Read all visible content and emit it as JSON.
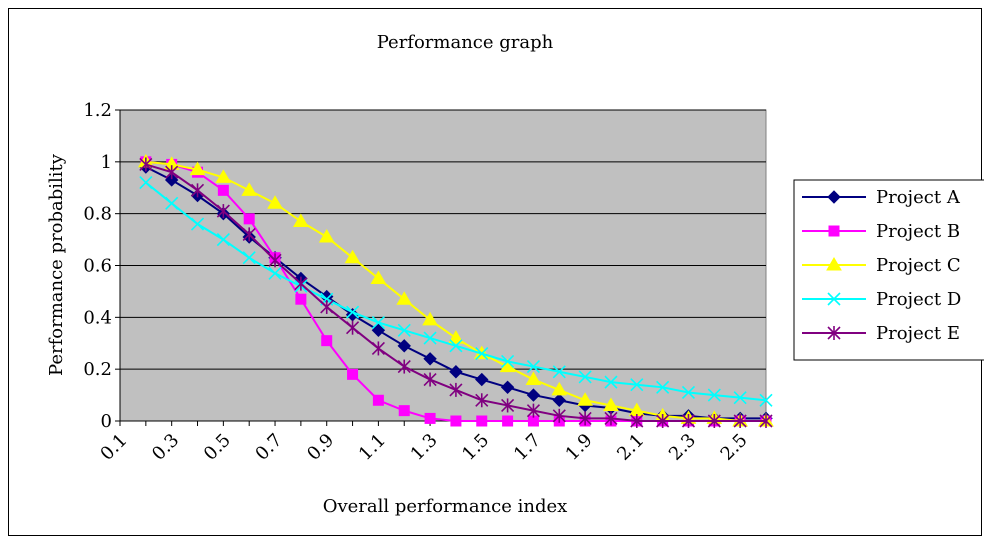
{
  "chart_data": {
    "type": "line",
    "title": "Performance graph",
    "xlabel": "Overall performance index",
    "ylabel": "Performance probability",
    "ylim": [
      0,
      1.2
    ],
    "yticks": [
      "0",
      "0.2",
      "0.4",
      "0.6",
      "0.8",
      "1",
      "1.2"
    ],
    "xtick_labels": [
      "0.1",
      "0.3",
      "0.5",
      "0.7",
      "0.9",
      "1.1",
      "1.3",
      "1.5",
      "1.7",
      "1.9",
      "2.1",
      "2.3",
      "2.5"
    ],
    "x": [
      0.2,
      0.3,
      0.4,
      0.5,
      0.6,
      0.7,
      0.8,
      0.9,
      1.0,
      1.1,
      1.2,
      1.3,
      1.4,
      1.5,
      1.6,
      1.7,
      1.8,
      1.9,
      2.0,
      2.1,
      2.2,
      2.3,
      2.4,
      2.5,
      2.6
    ],
    "grid": true,
    "legend_position": "right",
    "plot_background": "#c0c0c0",
    "series": [
      {
        "name": "Project A",
        "color": "#000080",
        "marker": "diamond",
        "values": [
          0.98,
          0.93,
          0.87,
          0.8,
          0.71,
          0.63,
          0.55,
          0.48,
          0.41,
          0.35,
          0.29,
          0.24,
          0.19,
          0.16,
          0.13,
          0.1,
          0.08,
          0.06,
          0.05,
          0.03,
          0.02,
          0.02,
          0.01,
          0.01,
          0.01
        ]
      },
      {
        "name": "Project B",
        "color": "#ff00ff",
        "marker": "square",
        "values": [
          1.0,
          0.99,
          0.96,
          0.89,
          0.78,
          0.63,
          0.47,
          0.31,
          0.18,
          0.08,
          0.04,
          0.01,
          0.0,
          0.0,
          0.0,
          0.0,
          0.0,
          0.0,
          0.0,
          0.0,
          0.0,
          0.0,
          0.0,
          0.0,
          0.0
        ]
      },
      {
        "name": "Project C",
        "color": "#ffff00",
        "marker": "triangle",
        "values": [
          1.0,
          0.99,
          0.97,
          0.94,
          0.89,
          0.84,
          0.77,
          0.71,
          0.63,
          0.55,
          0.47,
          0.39,
          0.32,
          0.26,
          0.21,
          0.16,
          0.12,
          0.08,
          0.06,
          0.04,
          0.02,
          0.01,
          0.01,
          0.0,
          0.0
        ]
      },
      {
        "name": "Project D",
        "color": "#00ffff",
        "marker": "x",
        "values": [
          0.92,
          0.84,
          0.76,
          0.7,
          0.63,
          0.57,
          0.52,
          0.47,
          0.42,
          0.38,
          0.35,
          0.32,
          0.29,
          0.26,
          0.23,
          0.21,
          0.19,
          0.17,
          0.15,
          0.14,
          0.13,
          0.11,
          0.1,
          0.09,
          0.08
        ]
      },
      {
        "name": "Project E",
        "color": "#800080",
        "marker": "star",
        "values": [
          0.99,
          0.96,
          0.89,
          0.81,
          0.72,
          0.62,
          0.53,
          0.44,
          0.36,
          0.28,
          0.21,
          0.16,
          0.12,
          0.08,
          0.06,
          0.04,
          0.02,
          0.01,
          0.01,
          0.0,
          0.0,
          0.0,
          0.0,
          0.0,
          0.0
        ]
      }
    ]
  }
}
